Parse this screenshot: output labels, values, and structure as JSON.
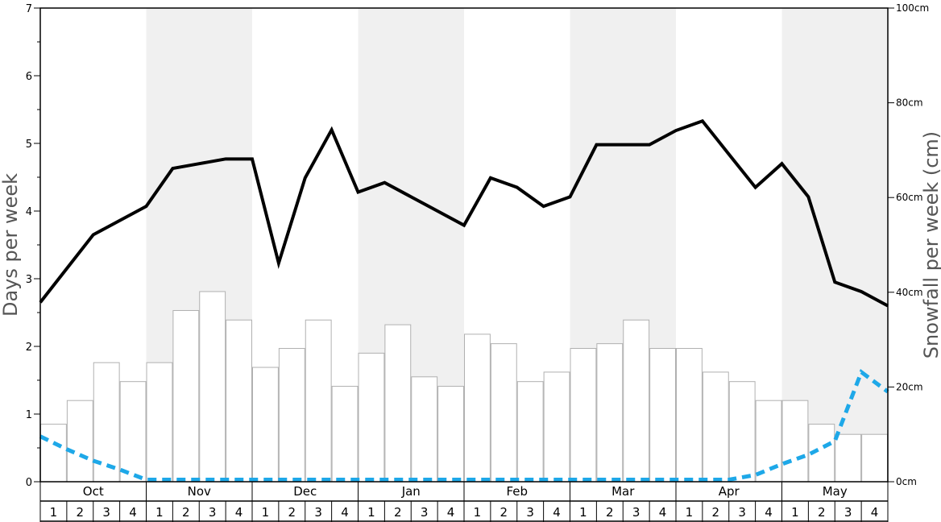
{
  "chart_data": {
    "type": "bar",
    "ylabel_left": "Days per week",
    "ylabel_right": "Snowfall per week (cm)",
    "ylim_left": [
      0,
      7
    ],
    "ylim_right": [
      0,
      100
    ],
    "left_ticks": [
      "0",
      "1",
      "2",
      "3",
      "4",
      "5",
      "6",
      "7"
    ],
    "right_ticks": [
      {
        "value": 0,
        "label": "0cm"
      },
      {
        "value": 20,
        "label": "20cm"
      },
      {
        "value": 40,
        "label": "40cm"
      },
      {
        "value": 60,
        "label": "60cm"
      },
      {
        "value": 80,
        "label": "80cm"
      },
      {
        "value": 100,
        "label": "100cm"
      }
    ],
    "months": [
      "Oct",
      "Nov",
      "Dec",
      "Jan",
      "Feb",
      "Mar",
      "Apr",
      "May"
    ],
    "week_labels": [
      "1",
      "2",
      "3",
      "4"
    ],
    "shaded_months": [
      false,
      true,
      false,
      true,
      false,
      true,
      false,
      true
    ],
    "colors": {
      "shade": "#f0f0f0",
      "bar_stroke": "#b0b0b0",
      "bar_fill": "#ffffff",
      "line_solid": "#000000",
      "line_dashed": "#1ea8e8"
    },
    "series": [
      {
        "type": "bar",
        "axis": "left",
        "values": [
          0.85,
          1.2,
          1.76,
          1.48,
          1.76,
          2.53,
          2.81,
          2.39,
          1.69,
          1.97,
          2.39,
          1.41,
          1.9,
          2.32,
          1.55,
          1.41,
          2.18,
          2.04,
          1.48,
          1.62,
          1.97,
          2.04,
          2.39,
          1.97,
          1.97,
          1.62,
          1.48,
          1.2,
          1.2,
          0.85,
          0.7,
          0.7
        ]
      },
      {
        "type": "line",
        "style": "solid",
        "axis": "left",
        "values": [
          2.65,
          3.15,
          3.65,
          3.86,
          4.07,
          4.63,
          4.7,
          4.77,
          4.77,
          3.23,
          4.49,
          5.2,
          4.28,
          4.42,
          4.21,
          4.0,
          3.79,
          4.49,
          4.35,
          4.07,
          4.21,
          4.98,
          4.98,
          4.98,
          5.19,
          5.33,
          4.84,
          4.35,
          4.7,
          4.21,
          2.95,
          2.81,
          2.6
        ]
      },
      {
        "type": "line",
        "style": "dashed",
        "axis": "left",
        "values": [
          0.67,
          0.48,
          0.31,
          0.18,
          0.03,
          0.03,
          0.03,
          0.03,
          0.03,
          0.03,
          0.03,
          0.03,
          0.03,
          0.03,
          0.03,
          0.03,
          0.03,
          0.03,
          0.03,
          0.03,
          0.03,
          0.03,
          0.03,
          0.03,
          0.03,
          0.03,
          0.03,
          0.1,
          0.26,
          0.4,
          0.6,
          1.62,
          1.33
        ]
      }
    ]
  }
}
